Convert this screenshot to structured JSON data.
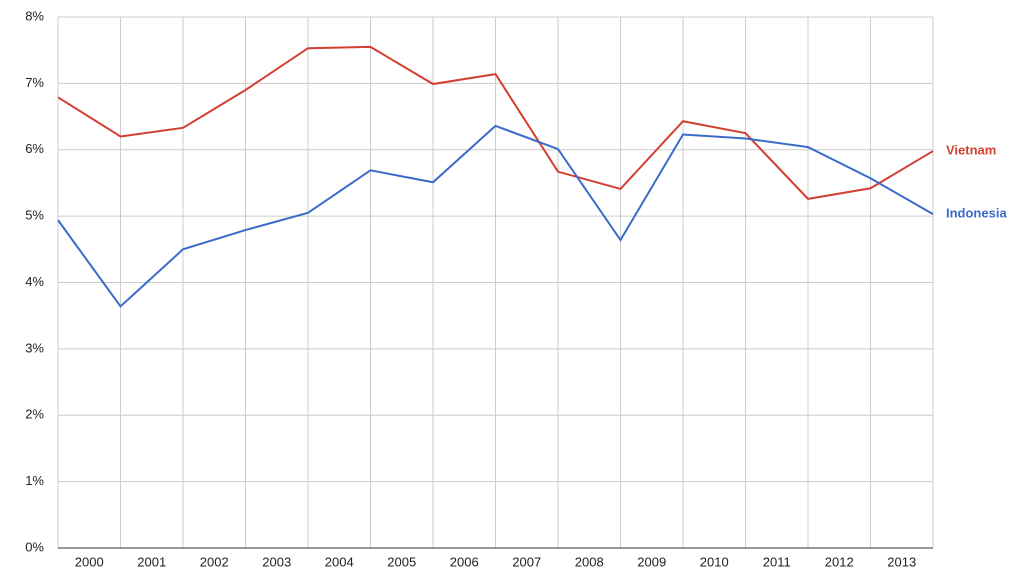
{
  "chart_data": {
    "type": "line",
    "x": [
      2000,
      2001,
      2002,
      2003,
      2004,
      2005,
      2006,
      2007,
      2008,
      2009,
      2010,
      2011,
      2012,
      2013,
      2014
    ],
    "xlim": [
      2000,
      2014
    ],
    "xticks": [
      {
        "value": 2000.5,
        "label": "2000"
      },
      {
        "value": 2001.5,
        "label": "2001"
      },
      {
        "value": 2002.5,
        "label": "2002"
      },
      {
        "value": 2003.5,
        "label": "2003"
      },
      {
        "value": 2004.5,
        "label": "2004"
      },
      {
        "value": 2005.5,
        "label": "2005"
      },
      {
        "value": 2006.5,
        "label": "2006"
      },
      {
        "value": 2007.5,
        "label": "2007"
      },
      {
        "value": 2008.5,
        "label": "2008"
      },
      {
        "value": 2009.5,
        "label": "2009"
      },
      {
        "value": 2010.5,
        "label": "2010"
      },
      {
        "value": 2011.5,
        "label": "2011"
      },
      {
        "value": 2012.5,
        "label": "2012"
      },
      {
        "value": 2013.5,
        "label": "2013"
      }
    ],
    "ylim": [
      0,
      8
    ],
    "yticks": [
      {
        "value": 0,
        "label": "0%"
      },
      {
        "value": 1,
        "label": "1%"
      },
      {
        "value": 2,
        "label": "2%"
      },
      {
        "value": 3,
        "label": "3%"
      },
      {
        "value": 4,
        "label": "4%"
      },
      {
        "value": 5,
        "label": "5%"
      },
      {
        "value": 6,
        "label": "6%"
      },
      {
        "value": 7,
        "label": "7%"
      },
      {
        "value": 8,
        "label": "8%"
      }
    ],
    "grid": true,
    "series": [
      {
        "name": "Vietnam",
        "color": "#d23f31",
        "values": [
          6.79,
          6.2,
          6.33,
          6.9,
          7.53,
          7.55,
          6.99,
          7.14,
          5.67,
          5.41,
          6.43,
          6.25,
          5.26,
          5.42,
          5.98
        ]
      },
      {
        "name": "Indonesia",
        "color": "#3b6bc8",
        "values": [
          4.94,
          3.64,
          4.5,
          4.79,
          5.05,
          5.69,
          5.51,
          6.36,
          6.01,
          4.64,
          6.23,
          6.17,
          6.04,
          5.57,
          5.03
        ]
      }
    ]
  }
}
